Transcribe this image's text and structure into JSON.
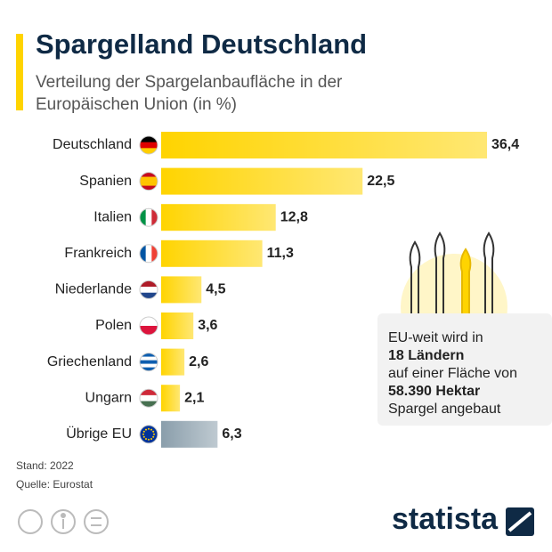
{
  "chart_data": {
    "type": "bar",
    "orientation": "horizontal",
    "title": "Spargelland Deutschland",
    "subtitle": [
      "Verteilung der Spargelanbaufläche in der",
      "Europäischen Union (in %)"
    ],
    "categories": [
      "Deutschland",
      "Spanien",
      "Italien",
      "Frankreich",
      "Niederlande",
      "Polen",
      "Griechenland",
      "Ungarn",
      "Übrige EU"
    ],
    "values": [
      36.4,
      22.5,
      12.8,
      11.3,
      4.5,
      3.6,
      2.6,
      2.1,
      6.3
    ],
    "value_labels": [
      "36,4",
      "22,5",
      "12,8",
      "11,3",
      "4,5",
      "3,6",
      "2,6",
      "2,1",
      "6,3"
    ],
    "colors": [
      "#ffd400",
      "#ffd400",
      "#ffd400",
      "#ffd400",
      "#ffd400",
      "#ffd400",
      "#ffd400",
      "#ffd400",
      "#8a9eab"
    ],
    "annotation": [
      "EU-weit wird in",
      "18 Ländern",
      "auf einer Fläche von",
      "58.390 Hektar",
      "Spargel angebaut"
    ],
    "notes": [
      "Stand: 2022",
      "Quelle: Eurostat"
    ],
    "brand": "statista"
  }
}
